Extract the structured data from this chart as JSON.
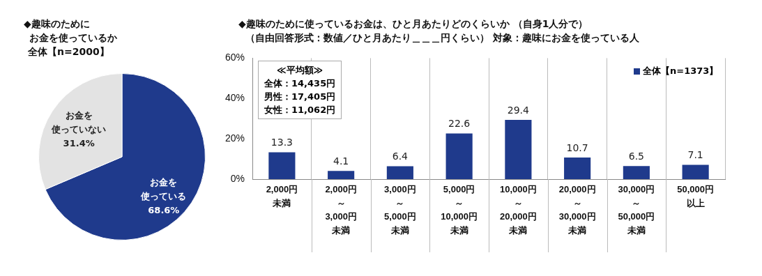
{
  "chart_data": [
    {
      "type": "pie",
      "title": "◆趣味のためにお金を使っているか",
      "subtitle": "全体【n=2000】",
      "categories": [
        "お金を使っている",
        "お金を使っていない"
      ],
      "values": [
        68.6,
        31.4
      ],
      "colors": [
        "#1f3a8c",
        "#e3e3e3"
      ],
      "value_labels": [
        "68.6%",
        "31.4%"
      ],
      "legend": false
    },
    {
      "type": "bar",
      "title": "◆趣味のために使っているお金は、ひと月あたりどのくらいか （自身1人分で）",
      "subtitle": "（自由回答形式：数値／ひと月あたり＿＿＿円くらい） 対象：趣味にお金を使っている人",
      "categories": [
        "2,000円未満",
        "2,000円～3,000円未満",
        "3,000円～5,000円未満",
        "5,000円～10,000円未満",
        "10,000円～20,000円未満",
        "20,000円～30,000円未満",
        "30,000円～50,000円未満",
        "50,000円以上"
      ],
      "series": [
        {
          "name": "全体【n=1373】",
          "color": "#1f3a8c",
          "values": [
            13.3,
            4.1,
            6.4,
            22.6,
            29.4,
            10.7,
            6.5,
            7.1
          ]
        }
      ],
      "ylim": [
        0,
        60
      ],
      "yticks": [
        {
          "value": 0,
          "label": "0%"
        },
        {
          "value": 20,
          "label": "20%"
        },
        {
          "value": 40,
          "label": "40%"
        },
        {
          "value": 60,
          "label": "60%"
        }
      ],
      "data_labels": true,
      "grid": "x",
      "legend": "top right",
      "annotations": [
        "≪平均額≫",
        "全体：14,435円",
        "男性：17,405円",
        "女性：11,062円"
      ]
    }
  ]
}
